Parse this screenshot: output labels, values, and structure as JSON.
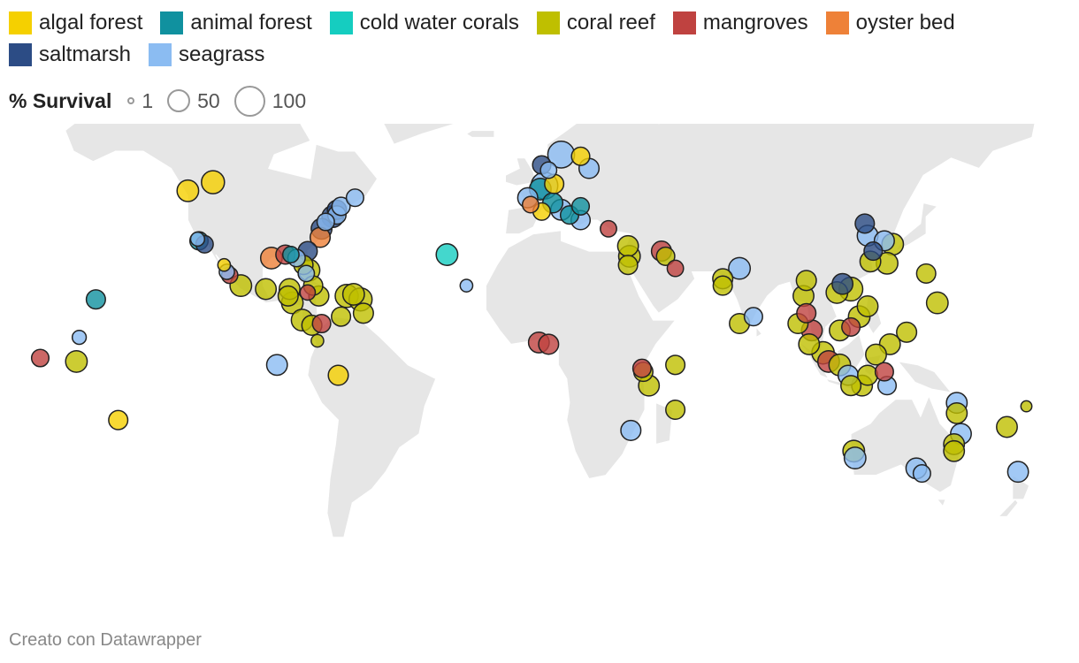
{
  "legend": {
    "items": [
      {
        "label": "algal forest",
        "color": "#f5d000"
      },
      {
        "label": "animal forest",
        "color": "#10919f"
      },
      {
        "label": "cold water corals",
        "color": "#15cdc0"
      },
      {
        "label": "coral reef",
        "color": "#bfbf00"
      },
      {
        "label": "mangroves",
        "color": "#bf4240"
      },
      {
        "label": "oyster bed",
        "color": "#ee8138"
      },
      {
        "label": "saltmarsh",
        "color": "#2c4c85"
      },
      {
        "label": "seagrass",
        "color": "#8bbcf2"
      }
    ]
  },
  "size_legend": {
    "title": "% Survival",
    "items": [
      {
        "label": "1",
        "value": 1
      },
      {
        "label": "50",
        "value": 50
      },
      {
        "label": "100",
        "value": 100
      }
    ]
  },
  "map": {
    "type": "world",
    "projection": "equirectangular",
    "land_color": "#e6e6e6",
    "points": [
      {
        "lat": 48.5,
        "lon": -124,
        "habitat": "algal forest",
        "survival": 60
      },
      {
        "lat": 34,
        "lon": -120,
        "habitat": "animal forest",
        "survival": 40
      },
      {
        "lat": 33,
        "lon": -118,
        "habitat": "saltmarsh",
        "survival": 35
      },
      {
        "lat": 34.5,
        "lon": -120.5,
        "habitat": "seagrass",
        "survival": 20
      },
      {
        "lat": 27,
        "lon": -111,
        "habitat": "algal forest",
        "survival": 15
      },
      {
        "lat": 25,
        "lon": -110,
        "habitat": "seagrass",
        "survival": 25
      },
      {
        "lat": 24,
        "lon": -109,
        "habitat": "mangroves",
        "survival": 30
      },
      {
        "lat": 21,
        "lon": -105,
        "habitat": "coral reef",
        "survival": 60
      },
      {
        "lat": 20,
        "lon": -96,
        "habitat": "coral reef",
        "survival": 55
      },
      {
        "lat": 29,
        "lon": -94,
        "habitat": "oyster bed",
        "survival": 60
      },
      {
        "lat": 30,
        "lon": -89,
        "habitat": "mangroves",
        "survival": 45
      },
      {
        "lat": 30,
        "lon": -87,
        "habitat": "animal forest",
        "survival": 30
      },
      {
        "lat": 29,
        "lon": -85,
        "habitat": "seagrass",
        "survival": 35
      },
      {
        "lat": 31,
        "lon": -81,
        "habitat": "saltmarsh",
        "survival": 45
      },
      {
        "lat": 27,
        "lon": -82.5,
        "habitat": "coral reef",
        "survival": 45
      },
      {
        "lat": 25.5,
        "lon": -80.5,
        "habitat": "coral reef",
        "survival": 60
      },
      {
        "lat": 24.5,
        "lon": -81.5,
        "habitat": "seagrass",
        "survival": 30
      },
      {
        "lat": 20,
        "lon": -87.5,
        "habitat": "coral reef",
        "survival": 55
      },
      {
        "lat": 18,
        "lon": -88,
        "habitat": "coral reef",
        "survival": 50
      },
      {
        "lat": 16,
        "lon": -86.5,
        "habitat": "coral reef",
        "survival": 60
      },
      {
        "lat": 19,
        "lon": -81,
        "habitat": "mangroves",
        "survival": 25
      },
      {
        "lat": 21,
        "lon": -79,
        "habitat": "coral reef",
        "survival": 45
      },
      {
        "lat": 18,
        "lon": -77,
        "habitat": "coral reef",
        "survival": 50
      },
      {
        "lat": 18,
        "lon": -67,
        "habitat": "coral reef",
        "survival": 70
      },
      {
        "lat": 18.5,
        "lon": -64.5,
        "habitat": "coral reef",
        "survival": 60
      },
      {
        "lat": 17,
        "lon": -62,
        "habitat": "coral reef",
        "survival": 70
      },
      {
        "lat": 13,
        "lon": -61,
        "habitat": "coral reef",
        "survival": 50
      },
      {
        "lat": 12,
        "lon": -69,
        "habitat": "coral reef",
        "survival": 45
      },
      {
        "lat": 10,
        "lon": -76,
        "habitat": "mangroves",
        "survival": 40
      },
      {
        "lat": 9.5,
        "lon": -79.5,
        "habitat": "coral reef",
        "survival": 50
      },
      {
        "lat": 11,
        "lon": -83,
        "habitat": "coral reef",
        "survival": 60
      },
      {
        "lat": 5,
        "lon": -77.5,
        "habitat": "coral reef",
        "survival": 15
      },
      {
        "lat": 35,
        "lon": -76.5,
        "habitat": "oyster bed",
        "survival": 50
      },
      {
        "lat": 37.5,
        "lon": -76,
        "habitat": "saltmarsh",
        "survival": 55
      },
      {
        "lat": 39.5,
        "lon": -74.5,
        "habitat": "seagrass",
        "survival": 35
      },
      {
        "lat": 41,
        "lon": -72,
        "habitat": "saltmarsh",
        "survival": 60
      },
      {
        "lat": 41.5,
        "lon": -70.5,
        "habitat": "seagrass",
        "survival": 40
      },
      {
        "lat": 43,
        "lon": -70.5,
        "habitat": "saltmarsh",
        "survival": 45
      },
      {
        "lat": 44,
        "lon": -69,
        "habitat": "seagrass",
        "survival": 40
      },
      {
        "lat": 46.5,
        "lon": -64,
        "habitat": "seagrass",
        "survival": 35
      },
      {
        "lat": 51,
        "lon": -115,
        "habitat": "algal forest",
        "survival": 70
      },
      {
        "lat": 17,
        "lon": -157,
        "habitat": "animal forest",
        "survival": 45
      },
      {
        "lat": 6,
        "lon": -163,
        "habitat": "seagrass",
        "survival": 20
      },
      {
        "lat": 0,
        "lon": -177,
        "habitat": "mangroves",
        "survival": 35
      },
      {
        "lat": -1,
        "lon": -164,
        "habitat": "coral reef",
        "survival": 60
      },
      {
        "lat": -18,
        "lon": -149,
        "habitat": "algal forest",
        "survival": 45
      },
      {
        "lat": -2,
        "lon": -92,
        "habitat": "seagrass",
        "survival": 55
      },
      {
        "lat": -5,
        "lon": -70,
        "habitat": "algal forest",
        "survival": 50
      },
      {
        "lat": 21,
        "lon": -24,
        "habitat": "seagrass",
        "survival": 15
      },
      {
        "lat": 30,
        "lon": -31,
        "habitat": "cold water corals",
        "survival": 60
      },
      {
        "lat": 59,
        "lon": 10,
        "habitat": "seagrass",
        "survival": 100
      },
      {
        "lat": 55,
        "lon": 20,
        "habitat": "seagrass",
        "survival": 50
      },
      {
        "lat": 58.5,
        "lon": 17,
        "habitat": "algal forest",
        "survival": 40
      },
      {
        "lat": 56,
        "lon": 3,
        "habitat": "saltmarsh",
        "survival": 40
      },
      {
        "lat": 54.5,
        "lon": 5.5,
        "habitat": "seagrass",
        "survival": 30
      },
      {
        "lat": 50,
        "lon": 4,
        "habitat": "seagrass",
        "survival": 100
      },
      {
        "lat": 49,
        "lon": 2.5,
        "habitat": "animal forest",
        "survival": 60
      },
      {
        "lat": 50.5,
        "lon": 7.5,
        "habitat": "algal forest",
        "survival": 45
      },
      {
        "lat": 46.5,
        "lon": -2,
        "habitat": "seagrass",
        "survival": 50
      },
      {
        "lat": 44.5,
        "lon": -1,
        "habitat": "oyster bed",
        "survival": 30
      },
      {
        "lat": 45,
        "lon": 7,
        "habitat": "animal forest",
        "survival": 50
      },
      {
        "lat": 42.5,
        "lon": 3,
        "habitat": "algal forest",
        "survival": 35
      },
      {
        "lat": 43,
        "lon": 10,
        "habitat": "seagrass",
        "survival": 55
      },
      {
        "lat": 41.5,
        "lon": 13,
        "habitat": "animal forest",
        "survival": 40
      },
      {
        "lat": 44,
        "lon": 17,
        "habitat": "animal forest",
        "survival": 35
      },
      {
        "lat": 40,
        "lon": 17,
        "habitat": "seagrass",
        "survival": 45
      },
      {
        "lat": 37.5,
        "lon": 27,
        "habitat": "mangroves",
        "survival": 30
      },
      {
        "lat": 32.5,
        "lon": 34,
        "habitat": "coral reef",
        "survival": 55
      },
      {
        "lat": 29.5,
        "lon": 34.5,
        "habitat": "coral reef",
        "survival": 60
      },
      {
        "lat": 27,
        "lon": 34,
        "habitat": "coral reef",
        "survival": 45
      },
      {
        "lat": 31,
        "lon": 46,
        "habitat": "mangroves",
        "survival": 50
      },
      {
        "lat": 29.5,
        "lon": 47.5,
        "habitat": "coral reef",
        "survival": 40
      },
      {
        "lat": 26,
        "lon": 51,
        "habitat": "mangroves",
        "survival": 30
      },
      {
        "lat": 26,
        "lon": 74,
        "habitat": "seagrass",
        "survival": 60
      },
      {
        "lat": 23,
        "lon": 68,
        "habitat": "coral reef",
        "survival": 50
      },
      {
        "lat": 21,
        "lon": 68,
        "habitat": "coral reef",
        "survival": 45
      },
      {
        "lat": 10,
        "lon": 74,
        "habitat": "coral reef",
        "survival": 50
      },
      {
        "lat": 12,
        "lon": 79,
        "habitat": "seagrass",
        "survival": 40
      },
      {
        "lat": 22.5,
        "lon": 98,
        "habitat": "coral reef",
        "survival": 50
      },
      {
        "lat": 18,
        "lon": 97,
        "habitat": "coral reef",
        "survival": 55
      },
      {
        "lat": 13,
        "lon": 98,
        "habitat": "mangroves",
        "survival": 45
      },
      {
        "lat": 10,
        "lon": 95,
        "habitat": "coral reef",
        "survival": 50
      },
      {
        "lat": 8,
        "lon": 100,
        "habitat": "mangroves",
        "survival": 55
      },
      {
        "lat": 4,
        "lon": 99,
        "habitat": "coral reef",
        "survival": 55
      },
      {
        "lat": 1.5,
        "lon": 104,
        "habitat": "coral reef",
        "survival": 65
      },
      {
        "lat": -1,
        "lon": 106,
        "habitat": "mangroves",
        "survival": 60
      },
      {
        "lat": -2,
        "lon": 110,
        "habitat": "coral reef",
        "survival": 60
      },
      {
        "lat": -5,
        "lon": 113,
        "habitat": "seagrass",
        "survival": 50
      },
      {
        "lat": 8,
        "lon": 110,
        "habitat": "coral reef",
        "survival": 55
      },
      {
        "lat": 9,
        "lon": 114,
        "habitat": "mangroves",
        "survival": 40
      },
      {
        "lat": 12,
        "lon": 117,
        "habitat": "coral reef",
        "survival": 60
      },
      {
        "lat": 15,
        "lon": 120,
        "habitat": "coral reef",
        "survival": 55
      },
      {
        "lat": 21.5,
        "lon": 111,
        "habitat": "saltmarsh",
        "survival": 55
      },
      {
        "lat": 19,
        "lon": 109,
        "habitat": "coral reef",
        "survival": 60
      },
      {
        "lat": 20,
        "lon": 114,
        "habitat": "coral reef",
        "survival": 75
      },
      {
        "lat": 28,
        "lon": 121,
        "habitat": "coral reef",
        "survival": 55
      },
      {
        "lat": 31,
        "lon": 122,
        "habitat": "saltmarsh",
        "survival": 40
      },
      {
        "lat": 35.5,
        "lon": 120,
        "habitat": "seagrass",
        "survival": 55
      },
      {
        "lat": 39,
        "lon": 119,
        "habitat": "saltmarsh",
        "survival": 45
      },
      {
        "lat": 34,
        "lon": 126,
        "habitat": "seagrass",
        "survival": 50
      },
      {
        "lat": 33,
        "lon": 129,
        "habitat": "coral reef",
        "survival": 60
      },
      {
        "lat": 27.5,
        "lon": 127,
        "habitat": "coral reef",
        "survival": 60
      },
      {
        "lat": 24.5,
        "lon": 141,
        "habitat": "coral reef",
        "survival": 45
      },
      {
        "lat": 16,
        "lon": 145,
        "habitat": "coral reef",
        "survival": 60
      },
      {
        "lat": 7.5,
        "lon": 134,
        "habitat": "coral reef",
        "survival": 50
      },
      {
        "lat": 4,
        "lon": 128,
        "habitat": "coral reef",
        "survival": 55
      },
      {
        "lat": 1,
        "lon": 123,
        "habitat": "coral reef",
        "survival": 55
      },
      {
        "lat": -5,
        "lon": 120,
        "habitat": "coral reef",
        "survival": 50
      },
      {
        "lat": -8,
        "lon": 127,
        "habitat": "seagrass",
        "survival": 40
      },
      {
        "lat": -8,
        "lon": 118,
        "habitat": "coral reef",
        "survival": 55
      },
      {
        "lat": -4,
        "lon": 126,
        "habitat": "mangroves",
        "survival": 40
      },
      {
        "lat": -8,
        "lon": 114,
        "habitat": "coral reef",
        "survival": 50
      },
      {
        "lat": -13,
        "lon": 152,
        "habitat": "seagrass",
        "survival": 55
      },
      {
        "lat": -16,
        "lon": 152,
        "habitat": "coral reef",
        "survival": 55
      },
      {
        "lat": -22,
        "lon": 153.5,
        "habitat": "seagrass",
        "survival": 55
      },
      {
        "lat": -20,
        "lon": 170,
        "habitat": "coral reef",
        "survival": 55
      },
      {
        "lat": -14,
        "lon": 177,
        "habitat": "coral reef",
        "survival": 10
      },
      {
        "lat": -25,
        "lon": 151,
        "habitat": "coral reef",
        "survival": 55
      },
      {
        "lat": -27,
        "lon": 115,
        "habitat": "coral reef",
        "survival": 60
      },
      {
        "lat": -29,
        "lon": 115.5,
        "habitat": "seagrass",
        "survival": 60
      },
      {
        "lat": -32,
        "lon": 137.5,
        "habitat": "seagrass",
        "survival": 55
      },
      {
        "lat": -33.5,
        "lon": 139.5,
        "habitat": "seagrass",
        "survival": 35
      },
      {
        "lat": -27,
        "lon": 151,
        "habitat": "coral reef",
        "survival": 55
      },
      {
        "lat": -33,
        "lon": 174,
        "habitat": "seagrass",
        "survival": 55
      },
      {
        "lat": 4.5,
        "lon": 2,
        "habitat": "mangroves",
        "survival": 55
      },
      {
        "lat": 4,
        "lon": 5.5,
        "habitat": "mangroves",
        "survival": 50
      },
      {
        "lat": -3,
        "lon": 39,
        "habitat": "mangroves",
        "survival": 40
      },
      {
        "lat": -4,
        "lon": 39.5,
        "habitat": "coral reef",
        "survival": 45
      },
      {
        "lat": -8,
        "lon": 41.5,
        "habitat": "coral reef",
        "survival": 55
      },
      {
        "lat": -2,
        "lon": 51,
        "habitat": "coral reef",
        "survival": 45
      },
      {
        "lat": -15,
        "lon": 51,
        "habitat": "coral reef",
        "survival": 45
      },
      {
        "lat": -21,
        "lon": 35,
        "habitat": "seagrass",
        "survival": 50
      }
    ]
  },
  "credit": "Creato con Datawrapper"
}
